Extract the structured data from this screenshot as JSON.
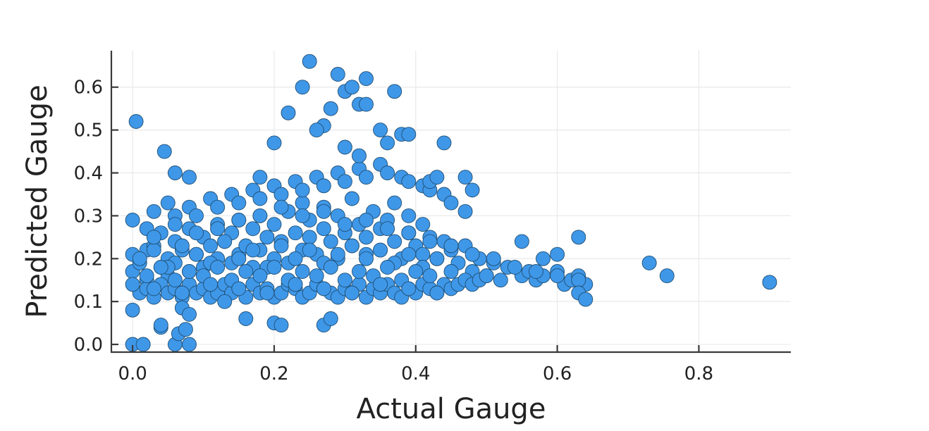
{
  "chart_data": {
    "type": "scatter",
    "title": "",
    "xlabel": "Actual Gauge",
    "ylabel": "Predicted Gauge",
    "xlim": [
      -0.03,
      0.93
    ],
    "ylim": [
      -0.018,
      0.685
    ],
    "x_ticks": [
      0.0,
      0.2,
      0.4,
      0.6,
      0.8
    ],
    "x_tick_labels": [
      "0.0",
      "0.2",
      "0.4",
      "0.6",
      "0.8"
    ],
    "y_ticks": [
      0.0,
      0.1,
      0.2,
      0.3,
      0.4,
      0.5,
      0.6
    ],
    "y_tick_labels": [
      "0.0",
      "0.1",
      "0.2",
      "0.3",
      "0.4",
      "0.5",
      "0.6"
    ],
    "grid": true,
    "legend": "none",
    "marker_color": "#3f97e8",
    "marker_edge_color": "#1f4f73",
    "series": [
      {
        "x": [
          0.0,
          0.0,
          0.01,
          0.02,
          0.02,
          0.03,
          0.04,
          0.04,
          0.05,
          0.05,
          0.06,
          0.06,
          0.07,
          0.08,
          0.08,
          0.09,
          0.1,
          0.1,
          0.11,
          0.12,
          0.12,
          0.13,
          0.14,
          0.14,
          0.15,
          0.15,
          0.16,
          0.17,
          0.17,
          0.18,
          0.18,
          0.19,
          0.2,
          0.2,
          0.21,
          0.22,
          0.22,
          0.23,
          0.24,
          0.24,
          0.25,
          0.25,
          0.26,
          0.27,
          0.27,
          0.28,
          0.29,
          0.29,
          0.3,
          0.31,
          0.31,
          0.32,
          0.33,
          0.33,
          0.34,
          0.35,
          0.35,
          0.36,
          0.37,
          0.37,
          0.38,
          0.39,
          0.39,
          0.4,
          0.41,
          0.41,
          0.42,
          0.43,
          0.44,
          0.45,
          0.46,
          0.47,
          0.48,
          0.49,
          0.5,
          0.51,
          0.52,
          0.53,
          0.55,
          0.56,
          0.57,
          0.58,
          0.6,
          0.61,
          0.62,
          0.63,
          0.64,
          0.01,
          0.02,
          0.03,
          0.04,
          0.05,
          0.06,
          0.07,
          0.08,
          0.09,
          0.1,
          0.11,
          0.12,
          0.13,
          0.14,
          0.15,
          0.16,
          0.17,
          0.18,
          0.19,
          0.2,
          0.21,
          0.22,
          0.23,
          0.24,
          0.25,
          0.26,
          0.27,
          0.28,
          0.29,
          0.3,
          0.31,
          0.32,
          0.33,
          0.34,
          0.35,
          0.36,
          0.37,
          0.38,
          0.39,
          0.4,
          0.41,
          0.42,
          0.43,
          0.44,
          0.45,
          0.46,
          0.47,
          0.48,
          0.49,
          0.5,
          0.0,
          0.02,
          0.03,
          0.05,
          0.06,
          0.08,
          0.09,
          0.11,
          0.12,
          0.14,
          0.15,
          0.17,
          0.18,
          0.2,
          0.21,
          0.23,
          0.24,
          0.26,
          0.27,
          0.29,
          0.3,
          0.32,
          0.33,
          0.35,
          0.36,
          0.38,
          0.39,
          0.41,
          0.42,
          0.44,
          0.45,
          0.47,
          0.01,
          0.03,
          0.05,
          0.07,
          0.09,
          0.11,
          0.13,
          0.15,
          0.17,
          0.19,
          0.21,
          0.23,
          0.25,
          0.27,
          0.29,
          0.31,
          0.33,
          0.35,
          0.37,
          0.39,
          0.41,
          0.43,
          0.45,
          0.02,
          0.04,
          0.06,
          0.08,
          0.1,
          0.12,
          0.14,
          0.16,
          0.18,
          0.2,
          0.22,
          0.24,
          0.26,
          0.28,
          0.3,
          0.32,
          0.34,
          0.36,
          0.38,
          0.4,
          0.42,
          0.0,
          0.03,
          0.06,
          0.09,
          0.12,
          0.15,
          0.18,
          0.21,
          0.24,
          0.27,
          0.3,
          0.33,
          0.36,
          0.39,
          0.42,
          0.45,
          0.48,
          0.51,
          0.54,
          0.57,
          0.6,
          0.63,
          0.03,
          0.07,
          0.11,
          0.15,
          0.19,
          0.23,
          0.27,
          0.31,
          0.35,
          0.39,
          0.43,
          0.005,
          0.045,
          0.06,
          0.08,
          0.18,
          0.2,
          0.27,
          0.28,
          0.3,
          0.32,
          0.33,
          0.0,
          0.04,
          0.07,
          0.08,
          0.13,
          0.16,
          0.2,
          0.21,
          0.22,
          0.24,
          0.25,
          0.26,
          0.27,
          0.28,
          0.29,
          0.3,
          0.31,
          0.32,
          0.33,
          0.35,
          0.36,
          0.37,
          0.38,
          0.39,
          0.42,
          0.43,
          0.44,
          0.47,
          0.48,
          0.0,
          0.015,
          0.06,
          0.065,
          0.075,
          0.08,
          0.04,
          0.55,
          0.58,
          0.6,
          0.63,
          0.73,
          0.755,
          0.9,
          0.63,
          0.64
        ],
        "y": [
          0.17,
          0.21,
          0.19,
          0.22,
          0.15,
          0.23,
          0.18,
          0.26,
          0.2,
          0.16,
          0.24,
          0.19,
          0.22,
          0.27,
          0.17,
          0.21,
          0.25,
          0.18,
          0.23,
          0.28,
          0.2,
          0.24,
          0.19,
          0.26,
          0.29,
          0.21,
          0.23,
          0.27,
          0.18,
          0.3,
          0.22,
          0.25,
          0.2,
          0.28,
          0.24,
          0.31,
          0.19,
          0.26,
          0.22,
          0.33,
          0.25,
          0.29,
          0.21,
          0.27,
          0.32,
          0.24,
          0.2,
          0.3,
          0.26,
          0.23,
          0.34,
          0.28,
          0.21,
          0.25,
          0.31,
          0.27,
          0.22,
          0.29,
          0.24,
          0.33,
          0.2,
          0.26,
          0.3,
          0.23,
          0.28,
          0.21,
          0.25,
          0.2,
          0.24,
          0.22,
          0.19,
          0.23,
          0.17,
          0.2,
          0.16,
          0.19,
          0.15,
          0.18,
          0.16,
          0.17,
          0.15,
          0.16,
          0.17,
          0.14,
          0.15,
          0.16,
          0.14,
          0.12,
          0.13,
          0.11,
          0.14,
          0.12,
          0.13,
          0.11,
          0.14,
          0.12,
          0.13,
          0.11,
          0.12,
          0.14,
          0.12,
          0.13,
          0.11,
          0.14,
          0.12,
          0.13,
          0.11,
          0.12,
          0.14,
          0.13,
          0.11,
          0.12,
          0.14,
          0.13,
          0.12,
          0.11,
          0.13,
          0.12,
          0.14,
          0.11,
          0.13,
          0.12,
          0.14,
          0.12,
          0.11,
          0.13,
          0.12,
          0.14,
          0.13,
          0.12,
          0.14,
          0.13,
          0.14,
          0.15,
          0.14,
          0.15,
          0.16,
          0.29,
          0.27,
          0.31,
          0.33,
          0.3,
          0.32,
          0.3,
          0.34,
          0.32,
          0.35,
          0.33,
          0.36,
          0.34,
          0.37,
          0.35,
          0.38,
          0.36,
          0.39,
          0.37,
          0.4,
          0.38,
          0.41,
          0.39,
          0.42,
          0.4,
          0.39,
          0.38,
          0.37,
          0.36,
          0.35,
          0.33,
          0.31,
          0.2,
          0.22,
          0.18,
          0.23,
          0.21,
          0.19,
          0.24,
          0.2,
          0.22,
          0.18,
          0.23,
          0.2,
          0.22,
          0.19,
          0.21,
          0.23,
          0.2,
          0.22,
          0.19,
          0.21,
          0.18,
          0.2,
          0.17,
          0.16,
          0.18,
          0.15,
          0.17,
          0.16,
          0.18,
          0.15,
          0.17,
          0.16,
          0.18,
          0.15,
          0.17,
          0.16,
          0.18,
          0.15,
          0.17,
          0.16,
          0.18,
          0.15,
          0.17,
          0.16,
          0.14,
          0.25,
          0.28,
          0.26,
          0.27,
          0.29,
          0.3,
          0.32,
          0.3,
          0.31,
          0.28,
          0.29,
          0.27,
          0.26,
          0.24,
          0.23,
          0.21,
          0.2,
          0.18,
          0.17,
          0.16,
          0.15,
          0.13,
          0.12,
          0.14,
          0.13,
          0.12,
          0.14,
          0.13,
          0.12,
          0.14,
          0.13,
          0.12,
          0.52,
          0.45,
          0.4,
          0.39,
          0.39,
          0.47,
          0.51,
          0.55,
          0.46,
          0.44,
          0.62,
          0.08,
          0.04,
          0.085,
          0.07,
          0.1,
          0.06,
          0.05,
          0.045,
          0.54,
          0.6,
          0.66,
          0.5,
          0.045,
          0.06,
          0.63,
          0.59,
          0.6,
          0.56,
          0.56,
          0.5,
          0.47,
          0.59,
          0.49,
          0.49,
          0.38,
          0.39,
          0.47,
          0.39,
          0.36,
          0.0,
          0.0,
          0.0,
          0.025,
          0.035,
          0.0,
          0.045,
          0.24,
          0.2,
          0.21,
          0.25,
          0.19,
          0.16,
          0.145,
          0.12,
          0.105
        ]
      }
    ]
  }
}
